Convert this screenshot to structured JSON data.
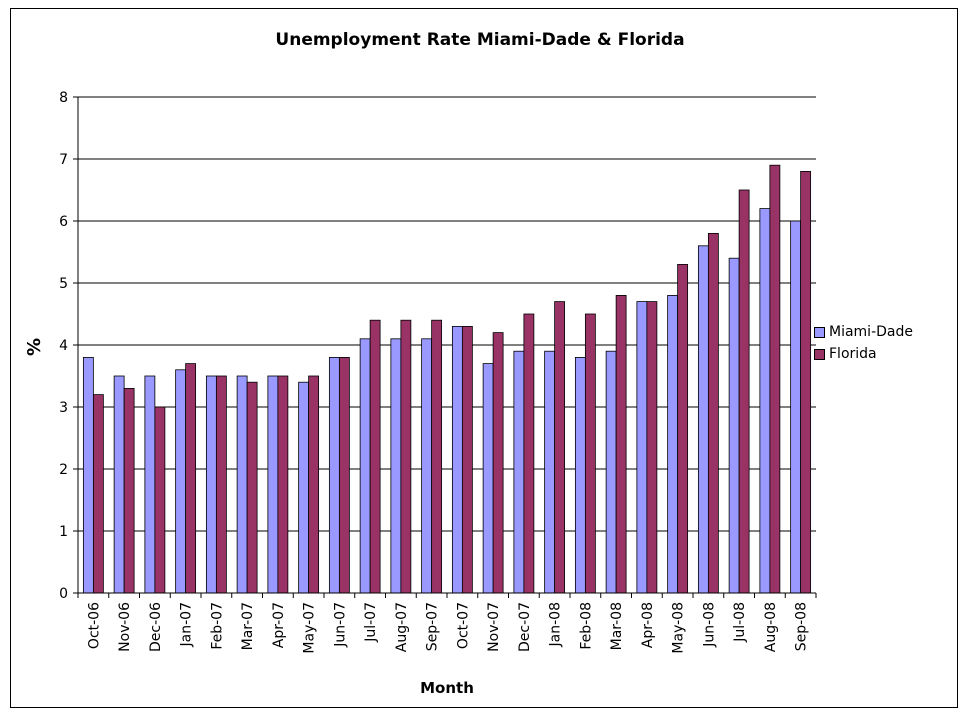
{
  "chart_data": {
    "type": "bar",
    "title": "Unemployment Rate Miami-Dade & Florida",
    "xlabel": "Month",
    "ylabel": "%",
    "ylim": [
      0,
      8
    ],
    "yticks": [
      0,
      1,
      2,
      3,
      4,
      5,
      6,
      7,
      8
    ],
    "grid": true,
    "legend_position": "right",
    "categories": [
      "Oct-06",
      "Nov-06",
      "Dec-06",
      "Jan-07",
      "Feb-07",
      "Mar-07",
      "Apr-07",
      "May-07",
      "Jun-07",
      "Jul-07",
      "Aug-07",
      "Sep-07",
      "Oct-07",
      "Nov-07",
      "Dec-07",
      "Jan-08",
      "Feb-08",
      "Mar-08",
      "Apr-08",
      "May-08",
      "Jun-08",
      "Jul-08",
      "Aug-08",
      "Sep-08"
    ],
    "series": [
      {
        "name": "Miami-Dade",
        "color": "#9999FF",
        "values": [
          3.8,
          3.5,
          3.5,
          3.6,
          3.5,
          3.5,
          3.5,
          3.4,
          3.8,
          4.1,
          4.1,
          4.1,
          4.3,
          3.7,
          3.9,
          3.9,
          3.8,
          3.9,
          4.7,
          4.8,
          5.6,
          5.4,
          6.2,
          6.0
        ]
      },
      {
        "name": "Florida",
        "color": "#993366",
        "values": [
          3.2,
          3.3,
          3.0,
          3.7,
          3.5,
          3.4,
          3.5,
          3.5,
          3.8,
          4.4,
          4.4,
          4.4,
          4.3,
          4.2,
          4.5,
          4.7,
          4.5,
          4.8,
          4.7,
          5.3,
          5.8,
          6.5,
          6.9,
          6.8
        ]
      }
    ]
  }
}
